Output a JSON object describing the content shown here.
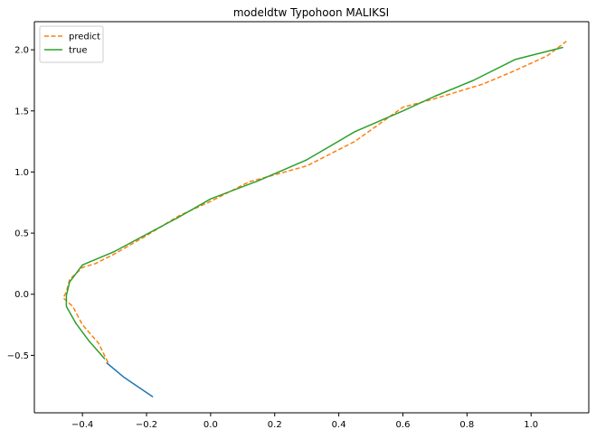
{
  "chart_data": {
    "type": "line",
    "title": "modeldtw  Typohoon MALIKSI",
    "xlabel": "",
    "ylabel": "",
    "xlim": [
      -0.55,
      1.18
    ],
    "ylim": [
      -0.97,
      2.23
    ],
    "grid": false,
    "legend_position": "top-left",
    "x_ticks": [
      -0.4,
      -0.2,
      0.0,
      0.2,
      0.4,
      0.6,
      0.8,
      1.0
    ],
    "x_tick_labels": [
      "−0.4",
      "−0.2",
      "0.0",
      "0.2",
      "0.4",
      "0.6",
      "0.8",
      "1.0"
    ],
    "y_ticks": [
      -0.5,
      0.0,
      0.5,
      1.0,
      1.5,
      2.0
    ],
    "y_tick_labels": [
      "−0.5",
      "0.0",
      "0.5",
      "1.0",
      "1.5",
      "2.0"
    ],
    "series": [
      {
        "color": "#1f77b4",
        "style": "solid",
        "in_legend": false,
        "x": [
          -0.325,
          -0.27,
          -0.225,
          -0.18
        ],
        "y": [
          -0.56,
          -0.68,
          -0.76,
          -0.84
        ]
      },
      {
        "name": "predict",
        "color": "#ff7f0e",
        "style": "dashed",
        "in_legend": true,
        "x": [
          -0.32,
          -0.35,
          -0.4,
          -0.43,
          -0.46,
          -0.45,
          -0.44,
          -0.4,
          -0.36,
          -0.3,
          -0.2,
          -0.1,
          0.0,
          0.12,
          0.3,
          0.45,
          0.6,
          0.7,
          0.85,
          0.95,
          1.05,
          1.11
        ],
        "y": [
          -0.56,
          -0.4,
          -0.25,
          -0.1,
          -0.03,
          0.02,
          0.12,
          0.22,
          0.25,
          0.33,
          0.48,
          0.64,
          0.76,
          0.92,
          1.05,
          1.25,
          1.53,
          1.6,
          1.72,
          1.83,
          1.95,
          2.07
        ]
      },
      {
        "name": "true",
        "color": "#2ca02c",
        "style": "solid",
        "in_legend": true,
        "x": [
          -0.33,
          -0.38,
          -0.42,
          -0.45,
          -0.45,
          -0.44,
          -0.4,
          -0.3,
          -0.2,
          -0.1,
          0.0,
          0.15,
          0.3,
          0.45,
          0.6,
          0.7,
          0.82,
          0.95,
          1.1
        ],
        "y": [
          -0.53,
          -0.38,
          -0.24,
          -0.1,
          -0.01,
          0.1,
          0.24,
          0.35,
          0.49,
          0.63,
          0.78,
          0.93,
          1.1,
          1.33,
          1.5,
          1.62,
          1.75,
          1.92,
          2.02
        ]
      }
    ]
  }
}
